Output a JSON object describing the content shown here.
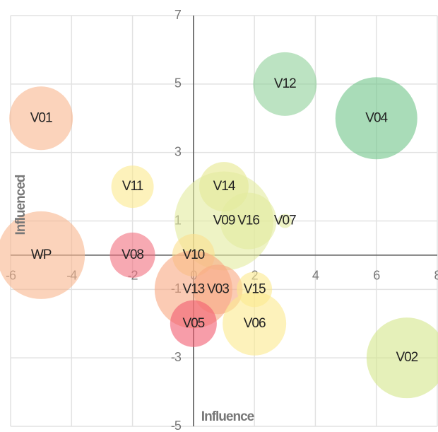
{
  "chart_data": {
    "type": "bubble",
    "x_label": "Influence",
    "y_label": "Influenced",
    "xlim": [
      -6,
      8
    ],
    "ylim": [
      -5,
      7
    ],
    "xticks": [
      -6,
      -4,
      -2,
      0,
      2,
      4,
      6,
      8
    ],
    "yticks": [
      -5,
      -3,
      -1,
      1,
      3,
      5,
      7
    ],
    "grid": true,
    "labels": [
      "V01",
      "V12",
      "V04",
      "V11",
      "V14",
      "V09",
      "V16",
      "V07",
      "WP",
      "V08",
      "V10",
      "V13",
      "V03",
      "V15",
      "V05",
      "V06",
      "V02"
    ],
    "x": [
      -5,
      3,
      6,
      -2,
      1,
      1,
      1.8,
      3,
      -5,
      -2,
      0,
      0,
      0.8,
      2,
      0,
      2,
      7
    ],
    "y": [
      4,
      5,
      4,
      2,
      2,
      1,
      1,
      1,
      0,
      0,
      0,
      -1,
      -1,
      -1,
      -2,
      -2,
      -3
    ],
    "sizes": [
      4.5,
      4.5,
      5.8,
      3,
      3.5,
      7,
      4,
      1,
      6.2,
      3.2,
      3,
      5.5,
      3.5,
      2.5,
      3.3,
      4.5,
      5.7
    ],
    "colors": [
      "#f9b58e",
      "#8fd19a",
      "#6fc488",
      "#fbe98e",
      "#e6e88e",
      "#e3eb9e",
      "#e3eb9e",
      "#e3eb9e",
      "#f9b58e",
      "#f2707e",
      "#fbe08e",
      "#f9a882",
      "#f9a882",
      "#fbe98e",
      "#f25c70",
      "#fbe98e",
      "#d3e68a"
    ]
  }
}
